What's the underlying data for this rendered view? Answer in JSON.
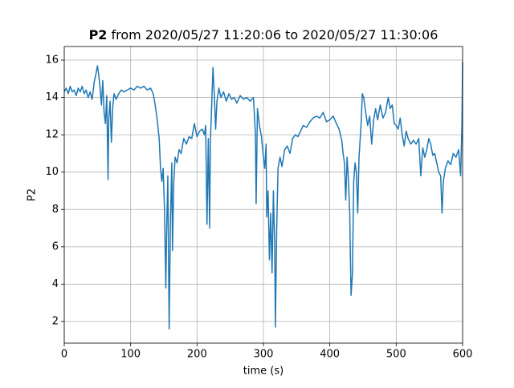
{
  "chart_data": {
    "type": "line",
    "title": [
      "P2",
      "from 2020/05/27 11:20:06 to 2020/05/27 11:30:06"
    ],
    "x_label": "time (s)",
    "y_label": "P2",
    "xlim": [
      0,
      600
    ],
    "ylim": [
      0.84,
      16.73
    ],
    "xticks": [
      0,
      100,
      200,
      300,
      400,
      500,
      600
    ],
    "yticks": [
      2,
      4,
      6,
      8,
      10,
      12,
      14,
      16
    ],
    "grid": true,
    "series": [
      {
        "color": "#1f77b4",
        "x": [
          0,
          3,
          6,
          9,
          12,
          15,
          18,
          21,
          24,
          27,
          30,
          33,
          36,
          39,
          42,
          45,
          48,
          50,
          52,
          54,
          56,
          58,
          60,
          62,
          64,
          66,
          67,
          69,
          71,
          73,
          75,
          78,
          82,
          86,
          90,
          95,
          100,
          105,
          110,
          115,
          120,
          125,
          130,
          134,
          137,
          140,
          143,
          145,
          147,
          149,
          151,
          153,
          154,
          156,
          158,
          160,
          162,
          163,
          165,
          167,
          170,
          173,
          176,
          180,
          184,
          188,
          192,
          196,
          200,
          204,
          208,
          211,
          213,
          215,
          217,
          219,
          220,
          222,
          224,
          226,
          228,
          230,
          233,
          236,
          240,
          244,
          248,
          252,
          256,
          260,
          265,
          270,
          275,
          280,
          285,
          288,
          289,
          291,
          294,
          297,
          300,
          302,
          304,
          305,
          307,
          309,
          311,
          313,
          315,
          317,
          318,
          320,
          322,
          325,
          328,
          332,
          336,
          340,
          344,
          348,
          352,
          356,
          360,
          365,
          370,
          375,
          380,
          385,
          390,
          395,
          400,
          405,
          410,
          414,
          418,
          420,
          422,
          424,
          426,
          428,
          430,
          431,
          432,
          434,
          436,
          438,
          440,
          442,
          444,
          447,
          449,
          451,
          454,
          457,
          460,
          463,
          466,
          469,
          472,
          476,
          480,
          484,
          488,
          491,
          494,
          497,
          500,
          503,
          506,
          509,
          512,
          515,
          518,
          522,
          526,
          530,
          534,
          537,
          540,
          543,
          546,
          549,
          552,
          555,
          558,
          561,
          564,
          567,
          569,
          571,
          574,
          578,
          582,
          586,
          590,
          594,
          597,
          599,
          600
        ],
        "values": [
          14.3,
          14.5,
          14.2,
          14.6,
          14.3,
          14.4,
          14.1,
          14.5,
          14.3,
          14.6,
          14.2,
          14.4,
          14.0,
          14.3,
          13.9,
          14.8,
          15.3,
          15.7,
          15.2,
          14.5,
          13.6,
          14.9,
          13.2,
          12.6,
          14.1,
          9.6,
          12.8,
          13.8,
          11.6,
          13.5,
          14.2,
          13.9,
          14.2,
          14.4,
          14.3,
          14.4,
          14.5,
          14.4,
          14.6,
          14.5,
          14.6,
          14.4,
          14.5,
          14.2,
          13.6,
          12.8,
          11.8,
          10.2,
          9.5,
          10.2,
          8.0,
          3.8,
          6.5,
          9.8,
          1.6,
          7.5,
          10.5,
          5.8,
          9.5,
          10.8,
          10.5,
          11.2,
          11.0,
          11.8,
          11.5,
          11.9,
          11.8,
          12.6,
          11.9,
          12.2,
          12.3,
          12.0,
          12.5,
          7.2,
          11.8,
          7.0,
          11.5,
          13.5,
          15.6,
          14.2,
          12.3,
          13.8,
          14.5,
          14.0,
          14.3,
          13.8,
          14.2,
          13.9,
          14.0,
          13.7,
          14.1,
          13.9,
          14.0,
          13.8,
          14.0,
          12.0,
          8.3,
          13.4,
          12.5,
          11.9,
          10.8,
          10.2,
          11.5,
          7.6,
          9.0,
          5.3,
          7.8,
          4.6,
          9.0,
          6.0,
          1.7,
          7.0,
          10.2,
          10.8,
          10.3,
          11.2,
          11.4,
          11.0,
          11.8,
          12.0,
          11.9,
          12.2,
          12.5,
          12.4,
          12.7,
          12.9,
          13.0,
          12.9,
          13.2,
          12.7,
          12.8,
          13.0,
          12.6,
          12.3,
          11.7,
          11.0,
          10.5,
          8.5,
          10.8,
          9.6,
          7.8,
          5.5,
          3.4,
          4.5,
          9.5,
          10.5,
          10.0,
          7.8,
          10.8,
          12.5,
          14.2,
          14.0,
          13.2,
          12.5,
          13.0,
          11.5,
          12.8,
          13.4,
          12.8,
          13.6,
          12.9,
          13.2,
          14.0,
          13.4,
          13.6,
          12.6,
          12.5,
          12.3,
          12.9,
          12.0,
          11.4,
          12.2,
          11.8,
          11.5,
          11.7,
          11.5,
          11.8,
          9.8,
          11.3,
          10.8,
          11.2,
          11.8,
          11.5,
          10.9,
          11.0,
          10.5,
          10.0,
          9.8,
          7.8,
          9.5,
          10.2,
          10.6,
          10.4,
          11.0,
          10.8,
          11.2,
          9.8,
          12.5,
          15.9
        ]
      }
    ]
  }
}
